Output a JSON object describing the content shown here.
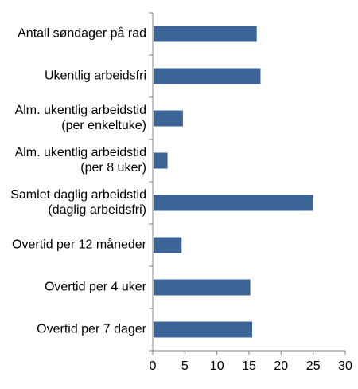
{
  "chart_data": {
    "type": "bar",
    "orientation": "horizontal",
    "title": "",
    "xlabel": "",
    "ylabel": "",
    "categories": [
      [
        "Antall søndager på rad"
      ],
      [
        "Ukentlig arbeidsfri"
      ],
      [
        "Alm. ukentlig arbeidstid",
        "(per enkeltuke)"
      ],
      [
        "Alm. ukentlig arbeidstid",
        "(per 8 uker)"
      ],
      [
        "Samlet daglig arbeidstid",
        "(daglig arbeidsfri)"
      ],
      [
        "Overtid per 12 måneder"
      ],
      [
        "Overtid per 4 uker"
      ],
      [
        "Overtid per 7 dager"
      ]
    ],
    "values": [
      16.2,
      16.8,
      4.7,
      2.3,
      25.0,
      4.5,
      15.2,
      15.5
    ],
    "xlim": [
      0,
      30
    ],
    "xticks": [
      "0",
      "5",
      "10",
      "15",
      "20",
      "25",
      "30"
    ],
    "grid": false,
    "legend": "none",
    "colors": {
      "bar": "#3c6496",
      "axis": "#808080"
    }
  }
}
